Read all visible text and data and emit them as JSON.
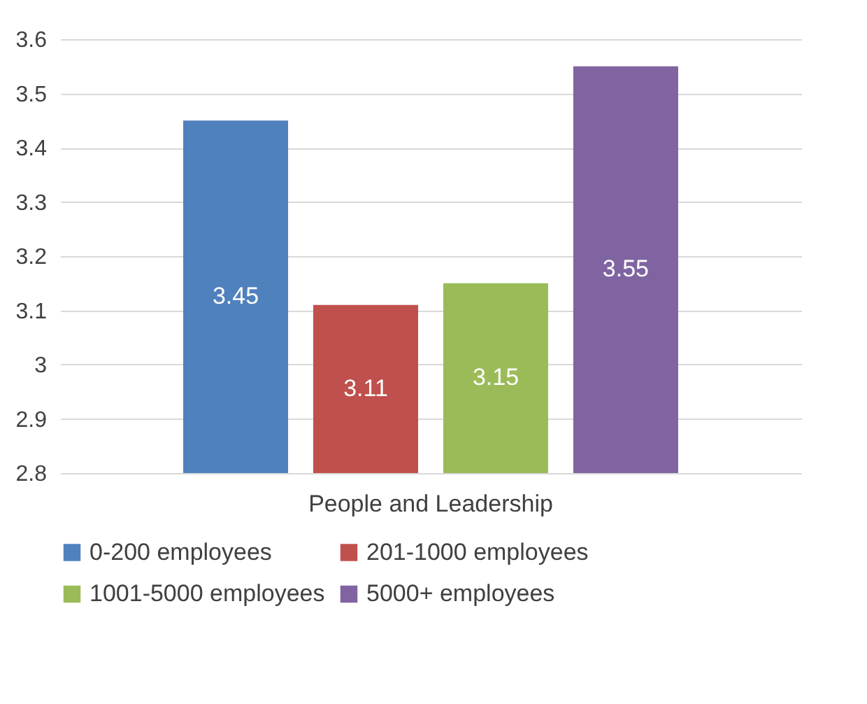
{
  "chart_data": {
    "type": "bar",
    "categories": [
      "People and Leadership"
    ],
    "series": [
      {
        "name": "0-200 employees",
        "color": "#4f81bd",
        "values": [
          3.45
        ]
      },
      {
        "name": "201-1000 employees",
        "color": "#c0504d",
        "values": [
          3.11
        ]
      },
      {
        "name": "1001-5000 employees",
        "color": "#9bbb59",
        "values": [
          3.15
        ]
      },
      {
        "name": "5000+ employees",
        "color": "#8064a2",
        "values": [
          3.55
        ]
      }
    ],
    "ylim": [
      2.8,
      3.6
    ],
    "yticks": [
      2.8,
      2.9,
      3,
      3.1,
      3.2,
      3.3,
      3.4,
      3.5,
      3.6
    ],
    "grid": "y",
    "legend": "bottom",
    "data_labels": true
  }
}
